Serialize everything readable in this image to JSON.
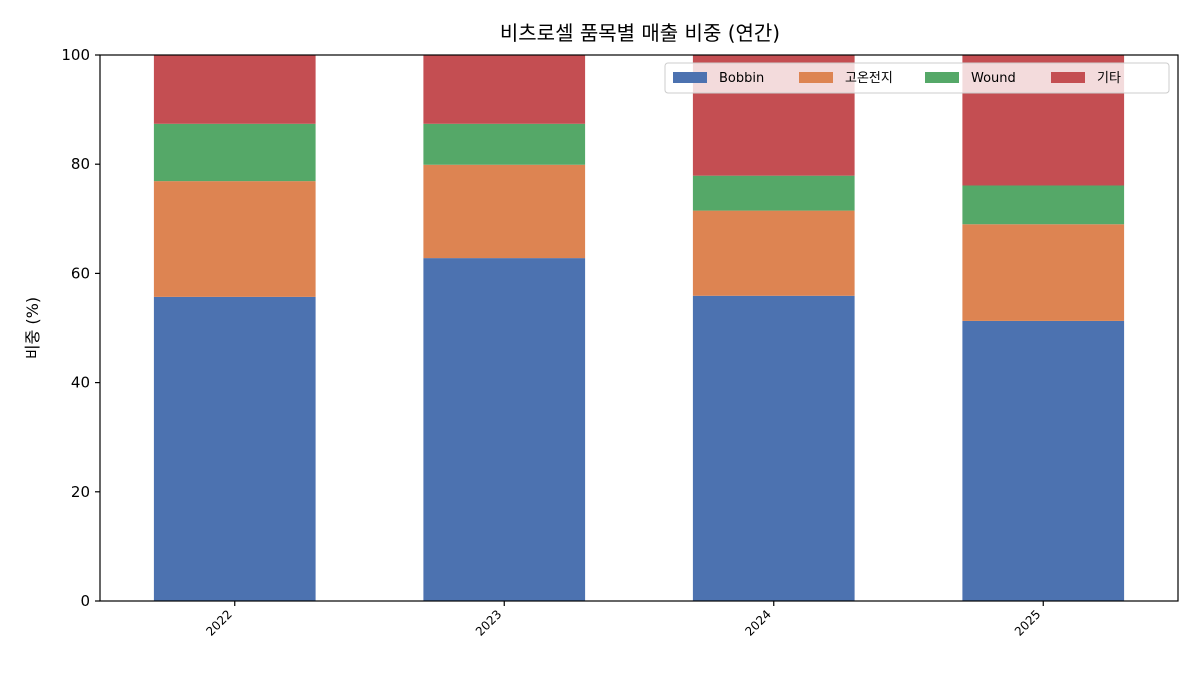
{
  "chart_data": {
    "type": "bar",
    "stacked": true,
    "title": "비츠로셀 품목별 매출 비중 (연간)",
    "xlabel": "",
    "ylabel": "비중 (%)",
    "ylim": [
      0,
      100
    ],
    "yticks": [
      0,
      20,
      40,
      60,
      80,
      100
    ],
    "categories": [
      "2022",
      "2023",
      "2024",
      "2025"
    ],
    "series": [
      {
        "name": "Bobbin",
        "color": "#4c72b0",
        "values": [
          55.7,
          62.8,
          55.9,
          51.3
        ]
      },
      {
        "name": "고온전지",
        "color": "#dd8452",
        "values": [
          21.2,
          17.1,
          15.6,
          17.7
        ]
      },
      {
        "name": "Wound",
        "color": "#55a868",
        "values": [
          10.5,
          7.5,
          6.4,
          7.1
        ]
      },
      {
        "name": "기타",
        "color": "#c44e52",
        "values": [
          12.6,
          12.6,
          22.1,
          23.9
        ]
      }
    ],
    "grid": false,
    "legend_position": "top-right"
  }
}
